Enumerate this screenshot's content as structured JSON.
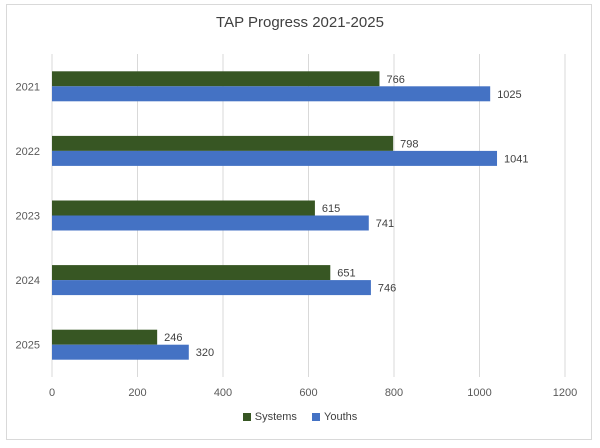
{
  "chart_data": {
    "type": "bar",
    "orientation": "horizontal",
    "title": "TAP Progress 2021-2025",
    "xlabel": "",
    "ylabel": "",
    "categories": [
      "2021",
      "2022",
      "2023",
      "2024",
      "2025"
    ],
    "series": [
      {
        "name": "Systems",
        "values": [
          766,
          798,
          615,
          651,
          246
        ],
        "color": "#375623"
      },
      {
        "name": "Youths",
        "values": [
          1025,
          1041,
          741,
          746,
          320
        ],
        "color": "#4472c4"
      }
    ],
    "xlim": [
      0,
      1200
    ],
    "xticks": [
      "0",
      "200",
      "400",
      "600",
      "800",
      "1000",
      "1200"
    ],
    "grid": true,
    "legend": "bottom-center"
  }
}
